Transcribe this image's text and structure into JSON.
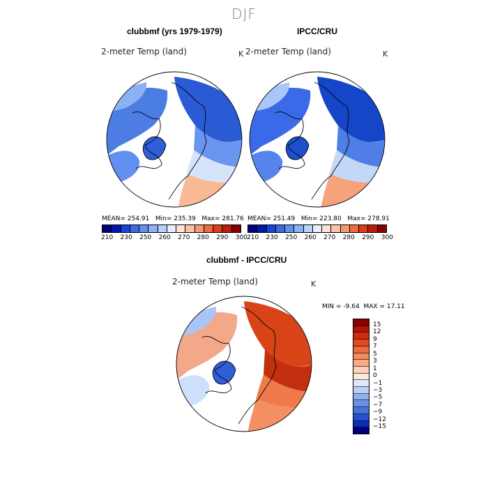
{
  "season": "DJF",
  "chart_data": [
    {
      "type": "heatmap",
      "projection": "polar stereographic (north pole)",
      "title": "clubbmf (yrs 1979-1979)",
      "subtitle": "2-meter Temp (land)",
      "units": "K",
      "stats": {
        "mean_label": "MEAN=",
        "mean": "254.91",
        "min_label": "Min=",
        "min": "235.39",
        "max_label": "Max=",
        "max": "281.76"
      },
      "colorbar": {
        "levels": [
          "210",
          "230",
          "250",
          "260",
          "270",
          "280",
          "290",
          "300"
        ],
        "colors": [
          "#00007f",
          "#0018a8",
          "#1846d8",
          "#3a6ae8",
          "#6190f0",
          "#8ab0f5",
          "#b9d2fa",
          "#e5eefc",
          "#fde3d4",
          "#f9c2a4",
          "#f5986e",
          "#ee6a3f",
          "#dd3b1a",
          "#bb1e0c",
          "#8b0000"
        ]
      }
    },
    {
      "type": "heatmap",
      "projection": "polar stereographic (north pole)",
      "title": "IPCC/CRU",
      "subtitle": "2-meter Temp (land)",
      "units": "K",
      "stats": {
        "mean_label": "MEAN=",
        "mean": "251.49",
        "min_label": "Min=",
        "min": "223.80",
        "max_label": "Max=",
        "max": "278.91"
      },
      "colorbar": {
        "levels": [
          "210",
          "230",
          "250",
          "260",
          "270",
          "280",
          "290",
          "300"
        ],
        "colors": [
          "#00007f",
          "#0018a8",
          "#1846d8",
          "#3a6ae8",
          "#6190f0",
          "#8ab0f5",
          "#b9d2fa",
          "#e5eefc",
          "#fde3d4",
          "#f9c2a4",
          "#f5986e",
          "#ee6a3f",
          "#dd3b1a",
          "#bb1e0c",
          "#8b0000"
        ]
      }
    },
    {
      "type": "heatmap",
      "projection": "polar stereographic (north pole)",
      "title": "clubbmf - IPCC/CRU",
      "subtitle": "2-meter Temp (land)",
      "units": "K",
      "stats": {
        "min_label": "MIN =",
        "min": "-9.64",
        "max_label": "MAX =",
        "max": "17.11"
      },
      "colorbar": {
        "orientation": "vertical",
        "levels": [
          "15",
          "12",
          "9",
          "7",
          "5",
          "3",
          "1",
          "0",
          "−1",
          "−3",
          "−5",
          "−7",
          "−9",
          "−12",
          "−15"
        ],
        "colors": [
          "#8b0000",
          "#b3140a",
          "#cf2b12",
          "#e24a20",
          "#ee6a3f",
          "#f58a5e",
          "#f9ab85",
          "#fdd0b8",
          "#fdeadf",
          "#dce8fb",
          "#b8cff6",
          "#8fb0ef",
          "#6a90e6",
          "#4672db",
          "#2550cf",
          "#0a2fb4",
          "#00007f"
        ]
      }
    }
  ]
}
